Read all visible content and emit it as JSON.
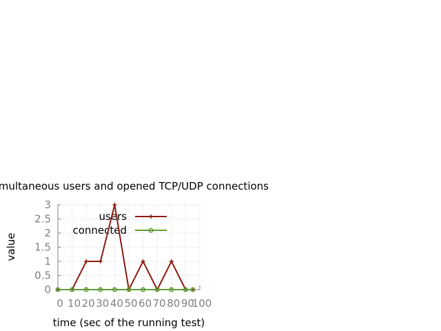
{
  "chart_data": {
    "type": "line",
    "title": "Simultaneous users and opened TCP/UDP connections",
    "xlabel": "time (sec of the running test)",
    "ylabel": "value",
    "xlim": [
      0,
      100
    ],
    "ylim": [
      0,
      3
    ],
    "x_ticks": [
      "0",
      "10",
      "20",
      "30",
      "40",
      "50",
      "60",
      "70",
      "80",
      "90",
      "100"
    ],
    "y_ticks": [
      "0",
      "0.5",
      "1",
      "1.5",
      "2",
      "2.5",
      "3"
    ],
    "grid": true,
    "legend_position": "top-right",
    "x": [
      0,
      10,
      20,
      30,
      40,
      50,
      60,
      70,
      80,
      90,
      95
    ],
    "series": [
      {
        "name": "users",
        "color": "#8b1a0e",
        "marker": "plus",
        "values": [
          0,
          0,
          1,
          1,
          3,
          0,
          1,
          0,
          1,
          0,
          0
        ]
      },
      {
        "name": "connected",
        "color": "#5e9c36",
        "marker": "circle",
        "values": [
          0,
          0,
          0,
          0,
          0,
          0,
          0,
          0,
          0,
          0,
          0
        ]
      }
    ]
  }
}
